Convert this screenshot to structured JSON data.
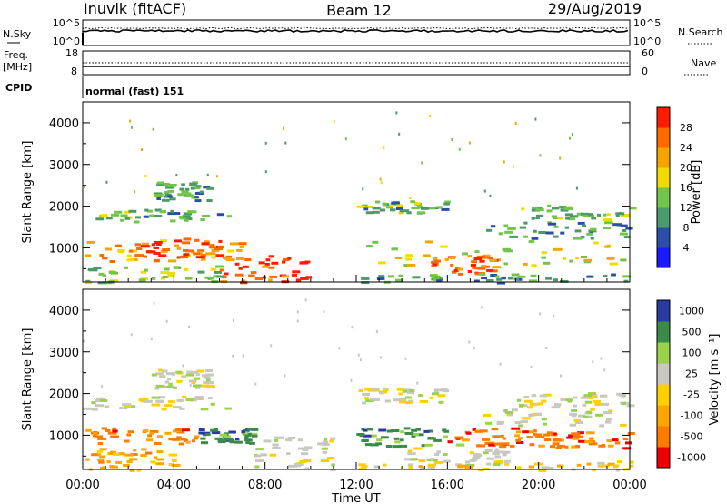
{
  "header": {
    "radar": "Inuvik (fitACF)",
    "beam": "Beam 12",
    "date": "29/Aug/2019"
  },
  "top_panels": {
    "nsky_label": "N.Sky",
    "nsearch_label": "N.Search",
    "freq_label": "Freq.",
    "freq_unit": "[MHz]",
    "nave_label": "Nave",
    "cpid_label": "CPID",
    "cpid_value": "normal (fast) 151",
    "noise_ticks_left": [
      "10^5",
      "10^0"
    ],
    "noise_ticks_right": [
      "10^5",
      "10^0"
    ],
    "freq_ticks_left": [
      "18",
      "8"
    ],
    "nave_ticks_right": [
      "60",
      "0"
    ]
  },
  "x_axis": {
    "label": "Time UT",
    "ticks": [
      "00:00",
      "04:00",
      "08:00",
      "12:00",
      "16:00",
      "20:00",
      "00:00"
    ]
  },
  "colors": {
    "power": [
      "#1a1aff",
      "#2b4fa8",
      "#4a9a6a",
      "#73c44a",
      "#f0dc00",
      "#f5a500",
      "#ff6a00",
      "#ff1a00"
    ],
    "velocity": [
      "#ee0000",
      "#ff7a00",
      "#ffa500",
      "#ffd000",
      "#c8c8c0",
      "#9ad24a",
      "#3a8a4a",
      "#2a3aa0"
    ]
  },
  "chart_data": [
    {
      "type": "heatmap",
      "title": "Power",
      "ylabel": "Slant Range [km]",
      "xlim": [
        0,
        24
      ],
      "ylim": [
        180,
        4500
      ],
      "yticks": [
        "1000",
        "2000",
        "3000",
        "4000"
      ],
      "colorbar": {
        "label": "Power [dB]",
        "ticks": [
          "4",
          "8",
          "12",
          "16",
          "20",
          "24",
          "28"
        ],
        "range": [
          0,
          32
        ]
      },
      "regions": [
        {
          "t": [
            0.0,
            6.5
          ],
          "range": [
            1650,
            1950
          ],
          "level": 12
        },
        {
          "t": [
            3.0,
            5.5
          ],
          "range": [
            2150,
            2600
          ],
          "level": 11
        },
        {
          "t": [
            0.0,
            7.0
          ],
          "range": [
            700,
            1250
          ],
          "level": 22
        },
        {
          "t": [
            2.0,
            6.0
          ],
          "range": [
            800,
            1200
          ],
          "level": 27
        },
        {
          "t": [
            6.0,
            10.0
          ],
          "range": [
            180,
            850
          ],
          "level": 28
        },
        {
          "t": [
            0.0,
            6.0
          ],
          "range": [
            180,
            600
          ],
          "level": 14
        },
        {
          "t": [
            12.0,
            16.0
          ],
          "range": [
            1850,
            2150
          ],
          "level": 12
        },
        {
          "t": [
            12.0,
            24.0
          ],
          "range": [
            600,
            1200
          ],
          "level": 18
        },
        {
          "t": [
            15.0,
            18.0
          ],
          "range": [
            400,
            850
          ],
          "level": 25
        },
        {
          "t": [
            19.0,
            24.0
          ],
          "range": [
            1700,
            2050
          ],
          "level": 13
        },
        {
          "t": [
            17.5,
            24.0
          ],
          "range": [
            1250,
            1650
          ],
          "level": 11
        },
        {
          "t": [
            12.0,
            24.0
          ],
          "range": [
            180,
            400
          ],
          "level": 10
        }
      ]
    },
    {
      "type": "heatmap",
      "title": "Velocity",
      "ylabel": "Slant Range [km]",
      "xlim": [
        0,
        24
      ],
      "ylim": [
        180,
        4500
      ],
      "yticks": [
        "1000",
        "2000",
        "3000",
        "4000"
      ],
      "colorbar": {
        "label": "Velocity [m s⁻¹]",
        "ticks": [
          "-1000",
          "-500",
          "-100",
          "-25",
          "25",
          "100",
          "500",
          "1000"
        ]
      },
      "regions": [
        {
          "t": [
            0.0,
            6.5
          ],
          "range": [
            1650,
            1950
          ],
          "bin": 4
        },
        {
          "t": [
            3.0,
            5.5
          ],
          "range": [
            2150,
            2600
          ],
          "bin": 4
        },
        {
          "t": [
            0.0,
            5.0
          ],
          "range": [
            800,
            1200
          ],
          "bin": 1
        },
        {
          "t": [
            5.0,
            7.5
          ],
          "range": [
            800,
            1200
          ],
          "bin": 6
        },
        {
          "t": [
            7.5,
            11.0
          ],
          "range": [
            200,
            1000
          ],
          "bin": 4
        },
        {
          "t": [
            0.0,
            4.0
          ],
          "range": [
            180,
            700
          ],
          "bin": 2
        },
        {
          "t": [
            12.0,
            16.0
          ],
          "range": [
            1800,
            2150
          ],
          "bin": 4
        },
        {
          "t": [
            12.0,
            16.0
          ],
          "range": [
            750,
            1200
          ],
          "bin": 6
        },
        {
          "t": [
            16.0,
            20.0
          ],
          "range": [
            750,
            1200
          ],
          "bin": 1
        },
        {
          "t": [
            14.0,
            18.5
          ],
          "range": [
            300,
            800
          ],
          "bin": 4
        },
        {
          "t": [
            20.0,
            24.0
          ],
          "range": [
            700,
            1100
          ],
          "bin": 1
        },
        {
          "t": [
            19.0,
            24.0
          ],
          "range": [
            1700,
            2050
          ],
          "bin": 4
        },
        {
          "t": [
            17.5,
            24.0
          ],
          "range": [
            1250,
            1650
          ],
          "bin": 4
        },
        {
          "t": [
            12.0,
            24.0
          ],
          "range": [
            180,
            400
          ],
          "bin": 3
        }
      ]
    }
  ]
}
